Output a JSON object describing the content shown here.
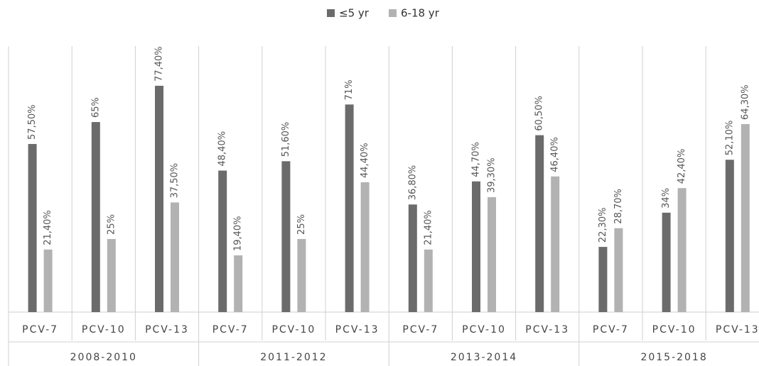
{
  "chart_data": {
    "type": "bar",
    "categories": [
      "PCV-7",
      "PCV-10",
      "PCV-13",
      "PCV-7",
      "PCV-10",
      "PCV-13",
      "PCV-7",
      "PCV-10",
      "PCV-13",
      "PCV-7",
      "PCV-10",
      "PCV-13"
    ],
    "groups": [
      "2008-2010",
      "2011-2012",
      "2013-2014",
      "2015-2018"
    ],
    "series": [
      {
        "name": "≤5 yr",
        "color": "#6b6b6b",
        "values": [
          57.5,
          65,
          77.4,
          48.4,
          51.6,
          71,
          36.8,
          44.7,
          60.5,
          22.3,
          34,
          52.1
        ],
        "value_labels": [
          "57,50%",
          "65%",
          "77,40%",
          "48,40%",
          "51,60%",
          "71%",
          "36,80%",
          "44,70%",
          "60,50%",
          "22,30%",
          "34%",
          "52,10%"
        ]
      },
      {
        "name": "6-18 yr",
        "color": "#b2b2b2",
        "values": [
          21.4,
          25,
          37.5,
          19.4,
          25,
          44.4,
          21.4,
          39.3,
          46.4,
          28.7,
          42.4,
          64.3
        ],
        "value_labels": [
          "21,40%",
          "25%",
          "37,50%",
          "19,40%",
          "25%",
          "44,40%",
          "21,40%",
          "39,30%",
          "46,40%",
          "28,70%",
          "42,40%",
          "64,30%"
        ]
      }
    ],
    "ylim": [
      0,
      90
    ],
    "legend": "top"
  }
}
